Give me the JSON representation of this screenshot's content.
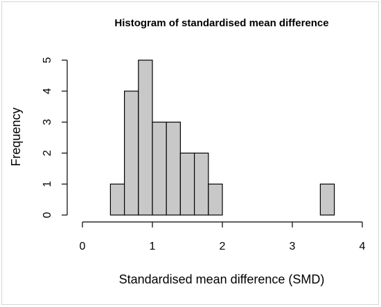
{
  "chart_data": {
    "type": "bar",
    "title": "Histogram of standardised mean difference",
    "xlabel": "Standardised mean difference (SMD)",
    "ylabel": "Frequency",
    "xlim": [
      0,
      4
    ],
    "ylim": [
      0,
      5
    ],
    "x_ticks": [
      "0",
      "1",
      "2",
      "3",
      "4"
    ],
    "y_ticks": [
      "0",
      "1",
      "2",
      "3",
      "4",
      "5"
    ],
    "bin_width": 0.2,
    "bins": [
      {
        "start": 0.4,
        "end": 0.6,
        "count": 1
      },
      {
        "start": 0.6,
        "end": 0.8,
        "count": 4
      },
      {
        "start": 0.8,
        "end": 1.0,
        "count": 5
      },
      {
        "start": 1.0,
        "end": 1.2,
        "count": 3
      },
      {
        "start": 1.2,
        "end": 1.4,
        "count": 3
      },
      {
        "start": 1.4,
        "end": 1.6,
        "count": 2
      },
      {
        "start": 1.6,
        "end": 1.8,
        "count": 2
      },
      {
        "start": 1.8,
        "end": 2.0,
        "count": 1
      },
      {
        "start": 3.4,
        "end": 3.6,
        "count": 1
      }
    ],
    "colors": {
      "bar_fill": "#c8c8c8",
      "bar_stroke": "#000000"
    }
  }
}
